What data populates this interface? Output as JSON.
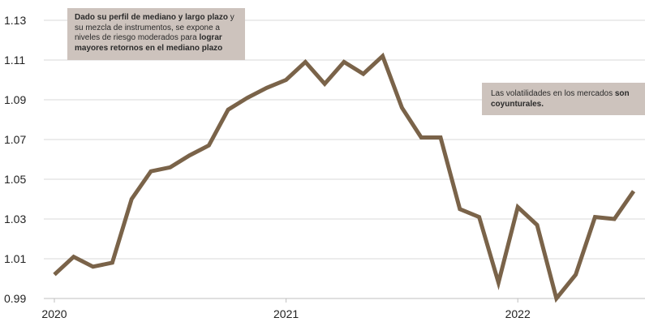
{
  "chart_data": {
    "type": "line",
    "x": [
      "2020-01",
      "2020-02",
      "2020-03",
      "2020-04",
      "2020-05",
      "2020-06",
      "2020-07",
      "2020-08",
      "2020-09",
      "2020-10",
      "2020-11",
      "2020-12",
      "2021-01",
      "2021-02",
      "2021-03",
      "2021-04",
      "2021-05",
      "2021-06",
      "2021-07",
      "2021-08",
      "2021-09",
      "2021-10",
      "2021-11",
      "2021-12",
      "2022-01",
      "2022-02",
      "2022-03",
      "2022-04",
      "2022-05",
      "2022-06",
      "2022-07"
    ],
    "series": [
      {
        "values": [
          1.002,
          1.011,
          1.006,
          1.008,
          1.04,
          1.054,
          1.056,
          1.062,
          1.067,
          1.085,
          1.091,
          1.096,
          1.1,
          1.109,
          1.098,
          1.109,
          1.103,
          1.112,
          1.086,
          1.071,
          1.071,
          1.035,
          1.031,
          0.998,
          1.036,
          1.027,
          0.99,
          1.002,
          1.031,
          1.03,
          1.044
        ]
      }
    ],
    "y_ticks": [
      "0.99",
      "1.01",
      "1.03",
      "1.05",
      "1.07",
      "1.09",
      "1.11",
      "1.13"
    ],
    "x_ticks": [
      "2020",
      "2021",
      "2022"
    ],
    "ylim": [
      0.99,
      1.13
    ],
    "grid": true,
    "line_color": "#7a6349",
    "annotations": [
      {
        "segments": [
          {
            "text": "Dado su perfil de mediano y largo plazo",
            "bold": true
          },
          {
            "text": " y su mezcla de instrumentos, se expone a niveles de riesgo moderados para ",
            "bold": false
          },
          {
            "text": "lograr mayores retornos en el mediano plazo",
            "bold": true
          }
        ]
      },
      {
        "segments": [
          {
            "text": "Las volatilidades en los mercados ",
            "bold": false
          },
          {
            "text": "son coyunturales.",
            "bold": true
          }
        ]
      }
    ],
    "annotation_color": "#cdc3bd"
  }
}
